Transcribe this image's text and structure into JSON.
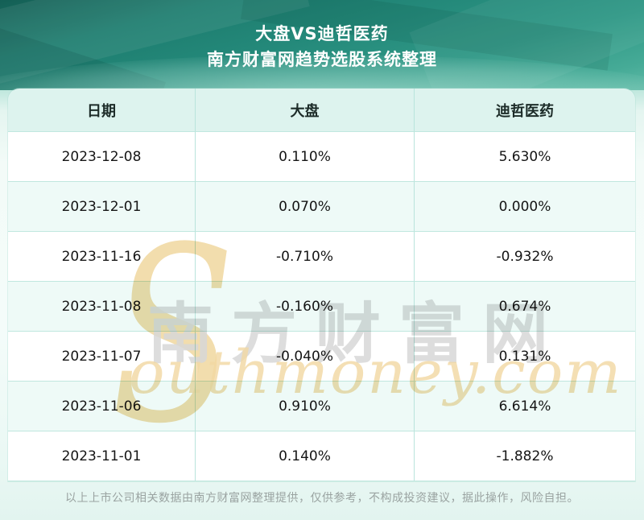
{
  "header": {
    "title_line1": "大盘VS迪哲医药",
    "title_line2": "南方财富网趋势选股系统整理"
  },
  "table": {
    "columns": [
      "日期",
      "大盘",
      "迪哲医药"
    ],
    "rows": [
      [
        "2023-12-08",
        "0.110%",
        "5.630%"
      ],
      [
        "2023-12-01",
        "0.070%",
        "0.000%"
      ],
      [
        "2023-11-16",
        "-0.710%",
        "-0.932%"
      ],
      [
        "2023-11-08",
        "-0.160%",
        "0.674%"
      ],
      [
        "2023-11-07",
        "-0.040%",
        "0.131%"
      ],
      [
        "2023-11-06",
        "0.910%",
        "6.614%"
      ],
      [
        "2023-11-01",
        "0.140%",
        "-1.882%"
      ]
    ]
  },
  "watermark": {
    "initial": "S",
    "cn_text": "南方财富网",
    "en_text": "outhmoney.com"
  },
  "footer": {
    "disclaimer": "以上上市公司相关数据由南方财富网整理提供，仅供参考，不构成投资建议，据此操作，风险自担。"
  },
  "colors": {
    "banner_teal_dark": "#145f55",
    "banner_teal_light": "#63bca9",
    "header_row_bg": "#ddf3ee",
    "alt_row_bg": "#eefaf7",
    "divider": "#b9e4dc",
    "text": "#151515",
    "footer_text": "#9aa3a1",
    "watermark_gray": "#d7d7d7",
    "watermark_gold": "#f0d79f"
  }
}
